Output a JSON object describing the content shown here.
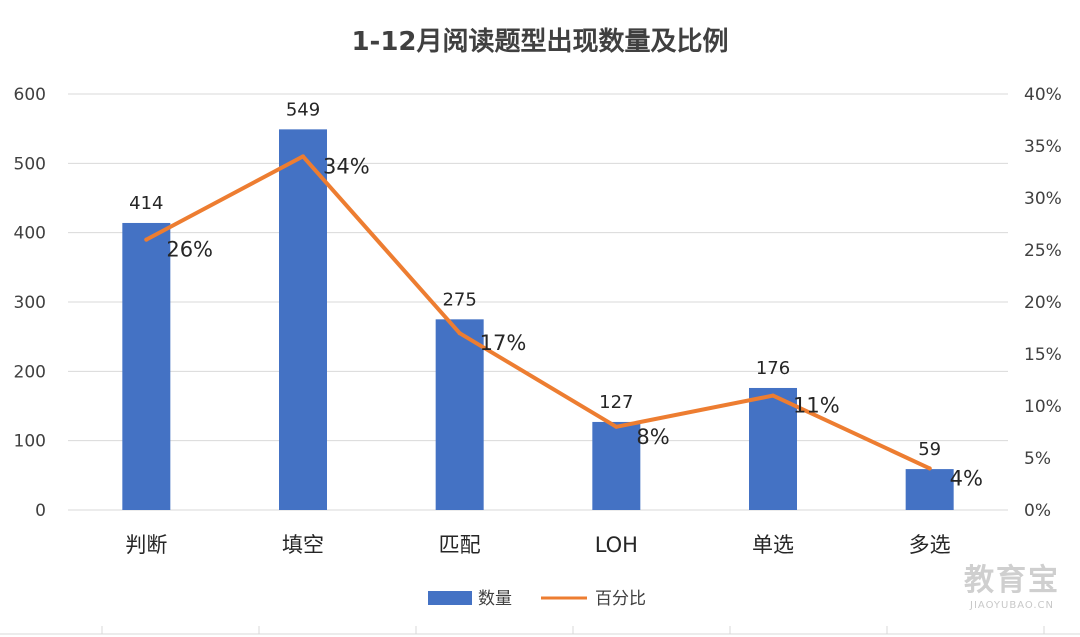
{
  "chart_data": {
    "type": "bar",
    "title": "1-12月阅读题型出现数量及比例",
    "categories": [
      "判断",
      "填空",
      "匹配",
      "LOH",
      "单选",
      "多选"
    ],
    "series": [
      {
        "name": "数量",
        "type": "bar",
        "axis": "left",
        "values": [
          414,
          549,
          275,
          127,
          176,
          59
        ],
        "labels": [
          "414",
          "549",
          "275",
          "127",
          "176",
          "59"
        ],
        "color": "#4472c4"
      },
      {
        "name": "百分比",
        "type": "line",
        "axis": "right",
        "values": [
          0.26,
          0.34,
          0.17,
          0.08,
          0.11,
          0.04
        ],
        "labels": [
          "26%",
          "34%",
          "17%",
          "8%",
          "11%",
          "4%"
        ],
        "color": "#ed7d31"
      }
    ],
    "y_left": {
      "min": 0,
      "max": 600,
      "ticks": [
        "0",
        "100",
        "200",
        "300",
        "400",
        "500",
        "600"
      ]
    },
    "y_right": {
      "min": 0,
      "max": 0.4,
      "ticks": [
        "0%",
        "5%",
        "10%",
        "15%",
        "20%",
        "25%",
        "30%",
        "35%",
        "40%"
      ]
    },
    "grid": true,
    "legend_position": "bottom"
  },
  "watermark": {
    "brand": "教育宝",
    "url": "JIAOYUBAO.CN"
  }
}
